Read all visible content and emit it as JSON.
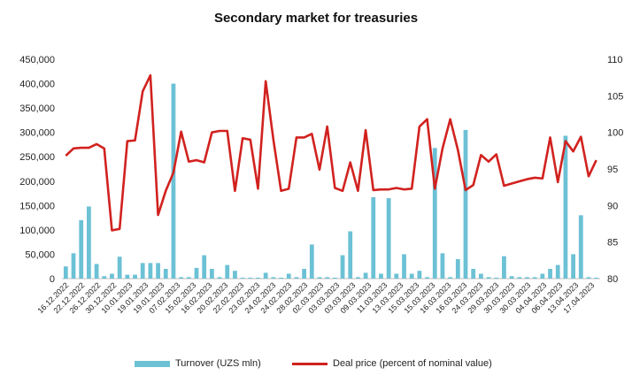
{
  "chart_data": {
    "type": "bar+line",
    "title": "Secondary market for treasuries",
    "x_tick_labels": [
      "16.12.2022",
      "22.12.2022",
      "26.12.2022",
      "30.12.2022",
      "10.01.2023",
      "19.01.2023",
      "19.01.2023",
      "07.02.2023",
      "15.02.2023",
      "16.02.2023",
      "20.02.2023",
      "22.02.2023",
      "23.02.2023",
      "24.02.2023",
      "24.02.2023",
      "28.02.2023",
      "02.03.2023",
      "03.03.2023",
      "03.03.2023",
      "09.03.2023",
      "11.03.2023",
      "13.03.2023",
      "15.03.2023",
      "15.03.2023",
      "16.03.2023",
      "16.03.2023",
      "24.03.2023",
      "29.03.2023",
      "30.03.2023",
      "30.03.2023",
      "04.04.2023",
      "06.04.2023",
      "13.04.2023",
      "17.04.2023"
    ],
    "left_axis": {
      "ylim": [
        0,
        450000
      ],
      "ticks": [
        "0",
        "50,000",
        "100,000",
        "150,000",
        "200,000",
        "250,000",
        "300,000",
        "350,000",
        "400,000",
        "450,000"
      ]
    },
    "right_axis": {
      "ylim": [
        80,
        110
      ],
      "ticks": [
        "80",
        "85",
        "90",
        "95",
        "100",
        "105",
        "110"
      ]
    },
    "series": [
      {
        "name": "Turnover (UZS mln)",
        "type": "bar",
        "axis": "left",
        "color": "#6cc1d5",
        "values": [
          25000,
          52000,
          120000,
          148000,
          30000,
          5000,
          10000,
          45000,
          8000,
          8000,
          32000,
          32000,
          32000,
          20000,
          400000,
          3000,
          3000,
          22000,
          48000,
          20000,
          3000,
          28000,
          16000,
          2000,
          2000,
          2000,
          12000,
          3000,
          2000,
          10000,
          3000,
          20000,
          70000,
          3000,
          3000,
          2000,
          48000,
          97000,
          3000,
          12000,
          167000,
          10000,
          165000,
          10000,
          50000,
          10000,
          16000,
          3000,
          268000,
          52000,
          3000,
          40000,
          305000,
          20000,
          10000,
          3000,
          2000,
          46000,
          5000,
          3000,
          3000,
          3000,
          10000,
          20000,
          28000,
          293000,
          50000,
          130000,
          3000,
          2000
        ]
      },
      {
        "name": "Deal price (percent of nominal value)",
        "type": "line",
        "axis": "right",
        "color": "#d1221f",
        "values": [
          96.8,
          97.8,
          97.9,
          97.9,
          98.4,
          97.8,
          86.6,
          86.8,
          98.8,
          98.9,
          105.6,
          107.8,
          88.7,
          92.0,
          94.5,
          100.1,
          96.0,
          96.2,
          95.9,
          100.0,
          100.2,
          100.2,
          92.0,
          99.2,
          99.0,
          92.3,
          107.0,
          99.0,
          92.0,
          92.3,
          99.3,
          99.3,
          99.8,
          94.9,
          100.8,
          92.4,
          92.0,
          95.9,
          92.0,
          100.3,
          92.1,
          92.2,
          92.2,
          92.4,
          92.2,
          92.3,
          100.8,
          101.8,
          92.3,
          97.8,
          101.8,
          97.6,
          92.1,
          92.8,
          96.9,
          96.0,
          97.0,
          92.7,
          93.0,
          93.3,
          93.6,
          93.8,
          93.7,
          99.3,
          93.2,
          98.8,
          97.4,
          99.4,
          94.0,
          96.2
        ]
      }
    ],
    "legend": [
      "Turnover (UZS mln)",
      "Deal price (percent of nominal value)"
    ],
    "legend_position": "bottom"
  }
}
